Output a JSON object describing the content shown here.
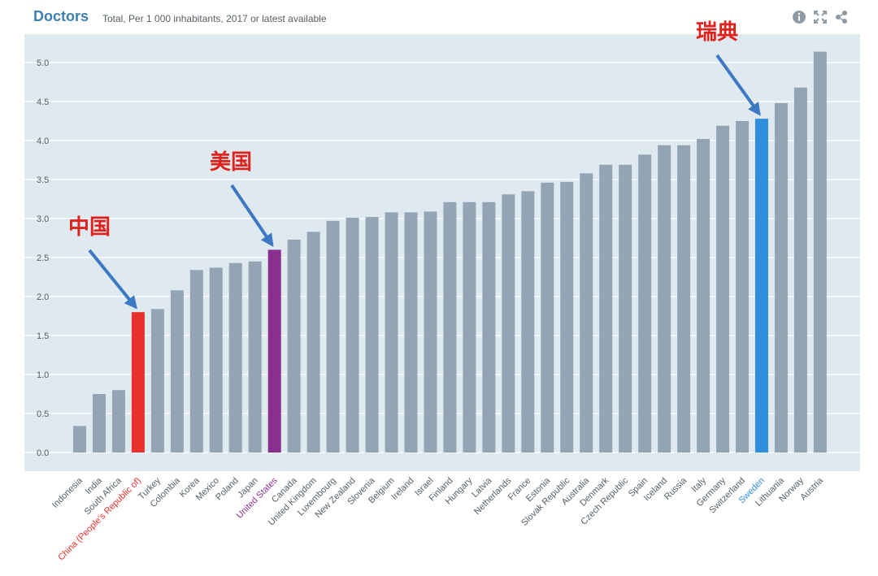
{
  "header": {
    "title": "Doctors",
    "subtitle": "Total, Per 1 000 inhabitants, 2017 or latest available"
  },
  "toolbar": {
    "icons": [
      "info-icon",
      "fullscreen-icon",
      "share-icon"
    ]
  },
  "colors": {
    "default_bar": "#93a5b4",
    "china": "#e8312a",
    "united_states": "#8b2f8f",
    "sweden": "#2f8fdc",
    "plot_bg": "#dfe9f0",
    "annotation": "#e0211c",
    "arrow": "#3d78c2"
  },
  "chart_data": {
    "type": "bar",
    "title": "Doctors",
    "subtitle": "Total, Per 1 000 inhabitants, 2017 or latest available",
    "xlabel": "",
    "ylabel": "",
    "ylim": [
      0,
      5.2
    ],
    "yticks": [
      "0.0",
      "0.5",
      "1.0",
      "1.5",
      "2.0",
      "2.5",
      "3.0",
      "3.5",
      "4.0",
      "4.5",
      "5.0"
    ],
    "grid": true,
    "categories": [
      "Indonesia",
      "India",
      "South Africa",
      "China (People's Republic of)",
      "Turkey",
      "Colombia",
      "Korea",
      "Mexico",
      "Poland",
      "Japan",
      "United States",
      "Canada",
      "United Kingdom",
      "Luxembourg",
      "New Zealand",
      "Slovenia",
      "Belgium",
      "Ireland",
      "Israel",
      "Finland",
      "Hungary",
      "Latvia",
      "Netherlands",
      "France",
      "Estonia",
      "Slovak Republic",
      "Australia",
      "Denmark",
      "Czech Republic",
      "Spain",
      "Iceland",
      "Russia",
      "Italy",
      "Germany",
      "Switzerland",
      "Sweden",
      "Lithuania",
      "Norway",
      "Austria"
    ],
    "values": [
      0.34,
      0.75,
      0.8,
      1.8,
      1.84,
      2.08,
      2.34,
      2.37,
      2.43,
      2.45,
      2.6,
      2.73,
      2.83,
      2.97,
      3.01,
      3.02,
      3.08,
      3.08,
      3.09,
      3.21,
      3.21,
      3.21,
      3.31,
      3.35,
      3.46,
      3.47,
      3.58,
      3.69,
      3.69,
      3.82,
      3.94,
      3.94,
      4.02,
      4.19,
      4.25,
      4.28,
      4.48,
      4.68,
      5.14
    ],
    "highlights": {
      "China (People's Republic of)": "#e8312a",
      "United States": "#8b2f8f",
      "Sweden": "#2f8fdc"
    },
    "annotations": [
      {
        "text": "中国",
        "target": "China (People's Republic of)"
      },
      {
        "text": "美国",
        "target": "United States"
      },
      {
        "text": "瑞典",
        "target": "Sweden"
      }
    ]
  }
}
